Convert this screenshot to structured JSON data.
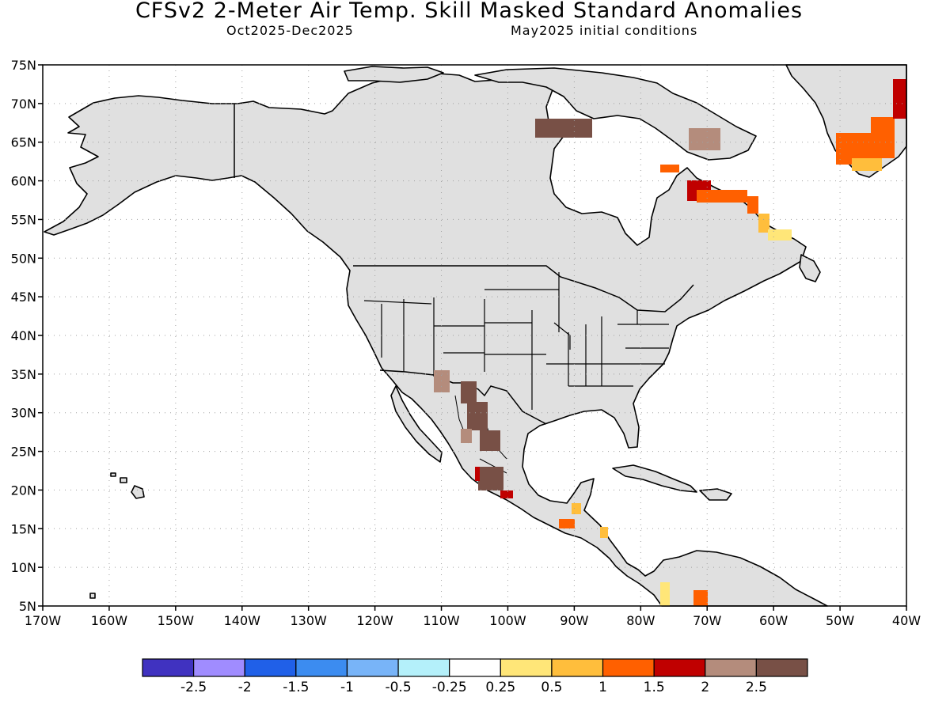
{
  "header": {
    "title": "CFSv2 2-Meter Air Temp. Skill Masked Standard Anomalies",
    "valid_period": "Oct2025-Dec2025",
    "initial_conditions": "May2025 initial conditions"
  },
  "map": {
    "lat_labels": [
      "75N",
      "70N",
      "65N",
      "60N",
      "55N",
      "50N",
      "45N",
      "40N",
      "35N",
      "30N",
      "25N",
      "20N",
      "15N",
      "10N",
      "5N"
    ],
    "lon_labels": [
      "170W",
      "160W",
      "150W",
      "140W",
      "130W",
      "120W",
      "110W",
      "100W",
      "90W",
      "80W",
      "70W",
      "60W",
      "50W",
      "40W"
    ],
    "lat_range": [
      5,
      75
    ],
    "lon_range": [
      -170,
      -40
    ],
    "grid": "dotted",
    "colors": {
      "land_masked": "#e0e0e0",
      "ocean": "#ffffff",
      "coastline": "#000000"
    }
  },
  "colorbar": {
    "labels": [
      "-2.5",
      "-2",
      "-1.5",
      "-1",
      "-0.5",
      "-0.25",
      "0.25",
      "0.5",
      "1",
      "1.5",
      "2",
      "2.5"
    ],
    "colors": [
      "#4032c0",
      "#a08cff",
      "#2060e8",
      "#3c8cf0",
      "#78b4f8",
      "#b4f0fa",
      "#ffffff",
      "#ffe678",
      "#ffbe3c",
      "#ff6000",
      "#c00000",
      "#b48c7c",
      "#785046"
    ]
  }
}
